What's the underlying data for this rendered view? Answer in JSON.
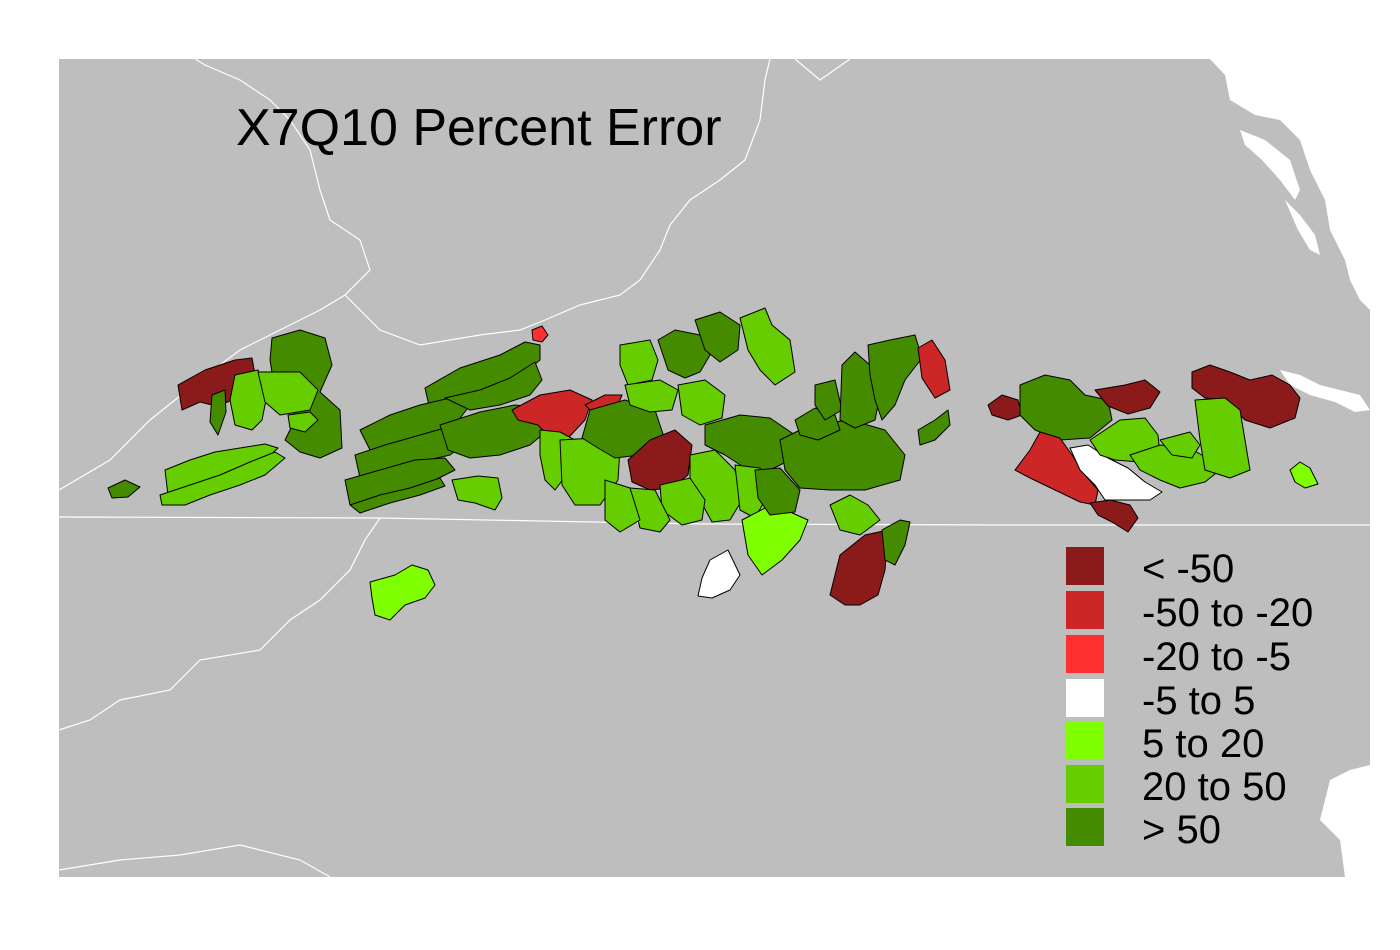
{
  "map": {
    "title": "X7Q10 Percent Error",
    "background_color": "#bebebe"
  },
  "legend": {
    "items": [
      {
        "label": "< -50",
        "color": "#8b1a1a"
      },
      {
        "label": "-50 to -20",
        "color": "#cd2626"
      },
      {
        "label": "-20 to -5",
        "color": "#ff3030"
      },
      {
        "label": "-5 to 5",
        "color": "#ffffff"
      },
      {
        "label": "5 to 20",
        "color": "#7fff00"
      },
      {
        "label": "20 to 50",
        "color": "#66cd00"
      },
      {
        "label": "> 50",
        "color": "#458b00"
      }
    ]
  }
}
